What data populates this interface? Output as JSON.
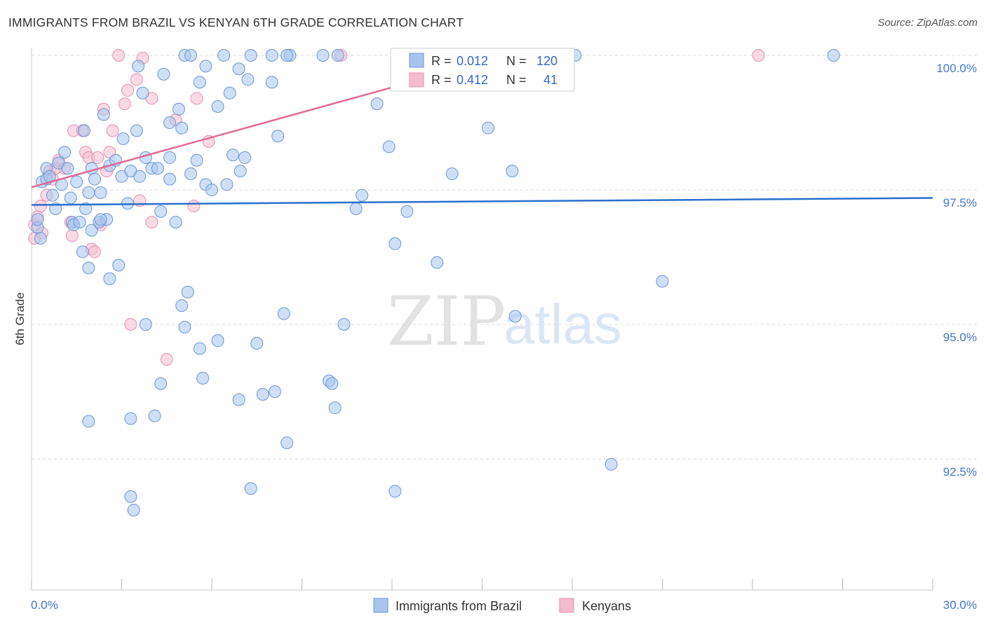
{
  "title": "IMMIGRANTS FROM BRAZIL VS KENYAN 6TH GRADE CORRELATION CHART",
  "source": "Source: ZipAtlas.com",
  "watermark": {
    "part1": "ZIP",
    "part2": "atlas"
  },
  "colors": {
    "brazil_fill": "#a8c4ec",
    "brazil_stroke": "#6a98d8",
    "brazil_line": "#2a6fcc",
    "kenya_fill": "#f5bcd0",
    "kenya_stroke": "#e890b0",
    "kenya_line": "#e06a96",
    "grid": "#d8d8d8",
    "tick_text": "#4477cc"
  },
  "legend_box": {
    "rows": [
      {
        "r_label": "R =",
        "r_value": "0.012",
        "n_label": "N =",
        "n_value": "120"
      },
      {
        "r_label": "R =",
        "r_value": "0.412",
        "n_label": "N =",
        "n_value": "41"
      }
    ]
  },
  "bottom_legend": [
    "Immigrants from Brazil",
    "Kenyans"
  ],
  "chart_data": {
    "type": "scatter",
    "title": "IMMIGRANTS FROM BRAZIL VS KENYAN 6TH GRADE CORRELATION CHART",
    "xlabel": "",
    "ylabel": "6th Grade",
    "xlim": [
      0.0,
      30.0
    ],
    "ylim": [
      90.2,
      100.3
    ],
    "x_tick_labels": [
      "0.0%",
      "30.0%"
    ],
    "y_ticks": [
      92.5,
      95.0,
      97.5,
      100.0
    ],
    "y_tick_labels": [
      "92.5%",
      "95.0%",
      "97.5%",
      "100.0%"
    ],
    "grid": true,
    "series": [
      {
        "name": "Immigrants from Brazil",
        "R": 0.012,
        "N": 120,
        "trend": {
          "x": [
            0.0,
            30.0
          ],
          "y": [
            97.22,
            97.35
          ]
        },
        "points": [
          [
            0.2,
            96.8
          ],
          [
            0.2,
            96.95
          ],
          [
            0.3,
            96.6
          ],
          [
            0.35,
            97.65
          ],
          [
            0.5,
            97.7
          ],
          [
            0.5,
            97.9
          ],
          [
            0.6,
            97.75
          ],
          [
            0.7,
            97.4
          ],
          [
            0.8,
            97.15
          ],
          [
            0.9,
            98.0
          ],
          [
            1.0,
            97.6
          ],
          [
            1.1,
            98.2
          ],
          [
            1.2,
            97.9
          ],
          [
            1.3,
            97.35
          ],
          [
            1.35,
            96.9
          ],
          [
            1.4,
            96.85
          ],
          [
            1.5,
            97.65
          ],
          [
            1.6,
            96.9
          ],
          [
            1.7,
            96.35
          ],
          [
            1.75,
            98.6
          ],
          [
            1.8,
            97.15
          ],
          [
            1.9,
            96.05
          ],
          [
            2.0,
            96.75
          ],
          [
            2.0,
            97.9
          ],
          [
            2.1,
            97.7
          ],
          [
            2.25,
            96.9
          ],
          [
            2.3,
            97.45
          ],
          [
            2.4,
            98.9
          ],
          [
            2.5,
            96.95
          ],
          [
            2.6,
            97.95
          ],
          [
            2.8,
            98.05
          ],
          [
            2.9,
            96.1
          ],
          [
            3.0,
            97.75
          ],
          [
            3.05,
            98.45
          ],
          [
            3.2,
            97.25
          ],
          [
            3.3,
            97.85
          ],
          [
            3.5,
            98.6
          ],
          [
            3.55,
            99.8
          ],
          [
            3.6,
            97.75
          ],
          [
            3.7,
            99.3
          ],
          [
            3.8,
            98.1
          ],
          [
            4.0,
            97.9
          ],
          [
            4.2,
            97.9
          ],
          [
            4.3,
            97.1
          ],
          [
            4.4,
            99.65
          ],
          [
            4.6,
            98.75
          ],
          [
            4.6,
            98.1
          ],
          [
            4.6,
            97.7
          ],
          [
            4.8,
            96.9
          ],
          [
            4.9,
            99.0
          ],
          [
            5.0,
            98.65
          ],
          [
            5.1,
            100.0
          ],
          [
            5.3,
            100.0
          ],
          [
            5.3,
            97.8
          ],
          [
            5.5,
            98.05
          ],
          [
            5.6,
            99.5
          ],
          [
            5.8,
            99.8
          ],
          [
            5.8,
            97.6
          ],
          [
            6.0,
            97.5
          ],
          [
            6.2,
            99.05
          ],
          [
            6.4,
            100.0
          ],
          [
            6.5,
            97.6
          ],
          [
            6.6,
            99.3
          ],
          [
            6.9,
            99.75
          ],
          [
            6.7,
            98.15
          ],
          [
            7.1,
            98.1
          ],
          [
            7.2,
            99.55
          ],
          [
            7.3,
            100.0
          ],
          [
            6.95,
            97.85
          ],
          [
            8.0,
            99.5
          ],
          [
            8.0,
            100.0
          ],
          [
            8.2,
            98.5
          ],
          [
            8.6,
            100.0
          ],
          [
            9.7,
            100.0
          ],
          [
            8.5,
            100.0
          ],
          [
            10.2,
            100.0
          ],
          [
            10.8,
            97.15
          ],
          [
            11.0,
            97.4
          ],
          [
            11.5,
            99.1
          ],
          [
            11.9,
            98.3
          ],
          [
            12.1,
            96.5
          ],
          [
            12.5,
            97.1
          ],
          [
            13.5,
            96.15
          ],
          [
            14.0,
            97.8
          ],
          [
            15.2,
            98.65
          ],
          [
            16.0,
            97.85
          ],
          [
            16.4,
            100.0
          ],
          [
            18.1,
            100.0
          ],
          [
            21.0,
            95.8
          ],
          [
            26.7,
            100.0
          ],
          [
            1.9,
            97.45
          ],
          [
            2.3,
            96.95
          ],
          [
            2.6,
            95.85
          ],
          [
            3.8,
            95.0
          ],
          [
            4.3,
            93.9
          ],
          [
            5.0,
            95.35
          ],
          [
            5.1,
            94.95
          ],
          [
            5.2,
            95.6
          ],
          [
            5.6,
            94.55
          ],
          [
            5.7,
            94.0
          ],
          [
            6.2,
            94.7
          ],
          [
            6.9,
            93.6
          ],
          [
            7.5,
            94.65
          ],
          [
            7.7,
            93.7
          ],
          [
            8.4,
            95.2
          ],
          [
            8.5,
            92.8
          ],
          [
            9.9,
            93.95
          ],
          [
            10.0,
            93.9
          ],
          [
            10.1,
            93.45
          ],
          [
            10.4,
            95.0
          ],
          [
            12.1,
            91.9
          ],
          [
            16.1,
            95.15
          ],
          [
            19.3,
            92.4
          ],
          [
            1.9,
            93.2
          ],
          [
            3.3,
            93.25
          ],
          [
            3.4,
            91.55
          ],
          [
            7.3,
            91.95
          ],
          [
            3.3,
            91.8
          ],
          [
            8.1,
            93.75
          ],
          [
            4.1,
            93.3
          ]
        ]
      },
      {
        "name": "Kenyans",
        "R": 0.412,
        "N": 41,
        "trend": {
          "x": [
            0.0,
            16.5
          ],
          "y": [
            97.55,
            100.1
          ]
        },
        "points": [
          [
            0.1,
            96.85
          ],
          [
            0.1,
            96.6
          ],
          [
            0.2,
            97.0
          ],
          [
            0.3,
            97.2
          ],
          [
            0.35,
            96.7
          ],
          [
            0.5,
            97.4
          ],
          [
            0.6,
            97.85
          ],
          [
            0.7,
            97.7
          ],
          [
            0.8,
            97.9
          ],
          [
            0.9,
            98.05
          ],
          [
            1.1,
            97.9
          ],
          [
            1.3,
            96.9
          ],
          [
            1.35,
            96.65
          ],
          [
            1.4,
            98.6
          ],
          [
            1.7,
            98.6
          ],
          [
            1.8,
            98.2
          ],
          [
            1.9,
            98.1
          ],
          [
            2.0,
            96.4
          ],
          [
            2.1,
            96.35
          ],
          [
            2.2,
            98.1
          ],
          [
            2.3,
            96.85
          ],
          [
            2.4,
            99.0
          ],
          [
            2.5,
            97.85
          ],
          [
            2.6,
            98.2
          ],
          [
            2.7,
            98.6
          ],
          [
            2.9,
            100.0
          ],
          [
            3.1,
            99.1
          ],
          [
            3.2,
            99.35
          ],
          [
            3.3,
            95.0
          ],
          [
            3.5,
            99.55
          ],
          [
            3.6,
            97.3
          ],
          [
            3.7,
            99.95
          ],
          [
            4.0,
            99.2
          ],
          [
            4.0,
            96.9
          ],
          [
            4.5,
            94.35
          ],
          [
            4.8,
            98.8
          ],
          [
            5.4,
            97.2
          ],
          [
            5.5,
            99.2
          ],
          [
            5.9,
            98.4
          ],
          [
            10.3,
            100.0
          ],
          [
            24.2,
            100.0
          ]
        ]
      }
    ]
  }
}
